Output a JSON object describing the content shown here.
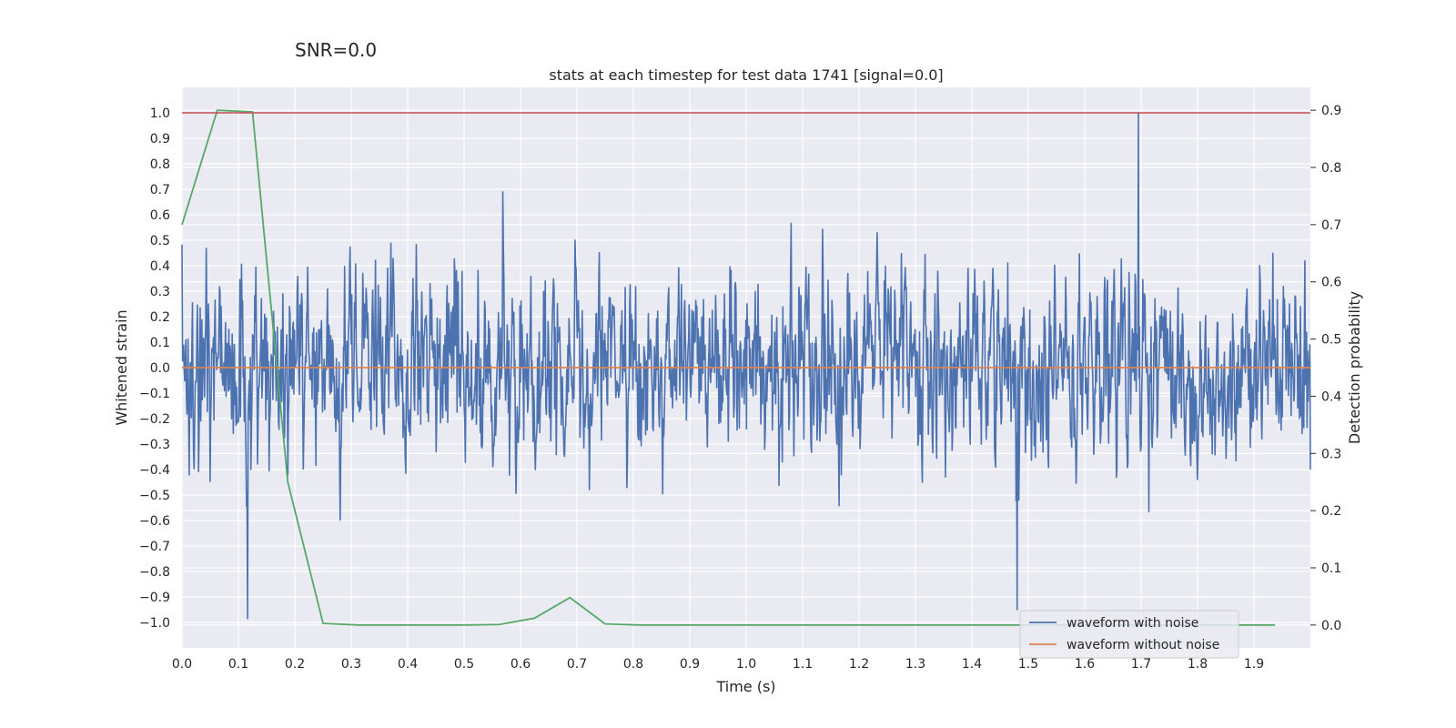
{
  "chart_data": {
    "type": "line",
    "suptitle": "SNR=0.0",
    "title": "stats at each timestep for test data 1741 [signal=0.0]",
    "xlabel": "Time (s)",
    "ylabel": "Whitened strain",
    "y2label": "Detection probability",
    "xlim": [
      0.0,
      2.0
    ],
    "ylim": [
      -1.1,
      1.1
    ],
    "y2lim": [
      -0.04,
      0.94
    ],
    "x_ticks": [
      "0.0",
      "0.1",
      "0.2",
      "0.3",
      "0.4",
      "0.5",
      "0.6",
      "0.7",
      "0.8",
      "0.9",
      "1.0",
      "1.1",
      "1.2",
      "1.3",
      "1.4",
      "1.5",
      "1.6",
      "1.7",
      "1.8",
      "1.9"
    ],
    "y_ticks": [
      "1.0",
      "0.9",
      "0.8",
      "0.7",
      "0.6",
      "0.5",
      "0.4",
      "0.3",
      "0.2",
      "0.1",
      "0.0",
      "−0.1",
      "−0.2",
      "−0.3",
      "−0.4",
      "−0.5",
      "−0.6",
      "−0.7",
      "−0.8",
      "−0.9",
      "−1.0"
    ],
    "y2_ticks": [
      "0.9",
      "0.8",
      "0.7",
      "0.6",
      "0.5",
      "0.4",
      "0.3",
      "0.2",
      "0.1",
      "0.0"
    ],
    "grid": true,
    "legend_position": "lower-right",
    "series": [
      {
        "name": "waveform with noise",
        "color": "#4c72b0",
        "axis": "left",
        "x_range": [
          0.0,
          2.0
        ],
        "sample_count": 2048,
        "amplitude_range": [
          -1.0,
          1.0
        ],
        "extremes": [
          [
            1.695,
            1.0
          ],
          [
            0.116,
            -0.985
          ],
          [
            1.48,
            -0.95
          ]
        ]
      },
      {
        "name": "waveform without noise",
        "color": "#dd8452",
        "axis": "left",
        "x": [
          0.0,
          2.0
        ],
        "y": [
          0.0,
          0.0
        ]
      },
      {
        "color": "#55a868",
        "axis": "right",
        "x": [
          0.0,
          0.0625,
          0.125,
          0.1875,
          0.25,
          0.3125,
          0.375,
          0.4375,
          0.5,
          0.5625,
          0.625,
          0.6875,
          0.75,
          0.8125,
          0.875,
          0.9375,
          1.0,
          1.0625,
          1.125,
          1.1875,
          1.25,
          1.3125,
          1.375,
          1.4375,
          1.5,
          1.5625,
          1.625,
          1.6875,
          1.75,
          1.8125,
          1.875,
          1.9375
        ],
        "y": [
          0.7,
          0.9,
          0.897,
          0.25,
          0.003,
          0.0,
          0.0,
          0.0,
          0.0,
          0.001,
          0.012,
          0.048,
          0.002,
          0.0,
          0.0,
          0.0,
          0.0,
          0.0,
          0.0,
          0.0,
          0.0,
          0.0,
          0.0,
          0.0,
          0.0,
          0.0,
          0.0,
          0.0,
          0.0,
          0.0,
          0.0,
          0.0
        ]
      },
      {
        "color": "#c44e52",
        "axis": "left",
        "x": [
          0.0,
          2.0
        ],
        "y": [
          1.0,
          1.0
        ]
      }
    ]
  }
}
